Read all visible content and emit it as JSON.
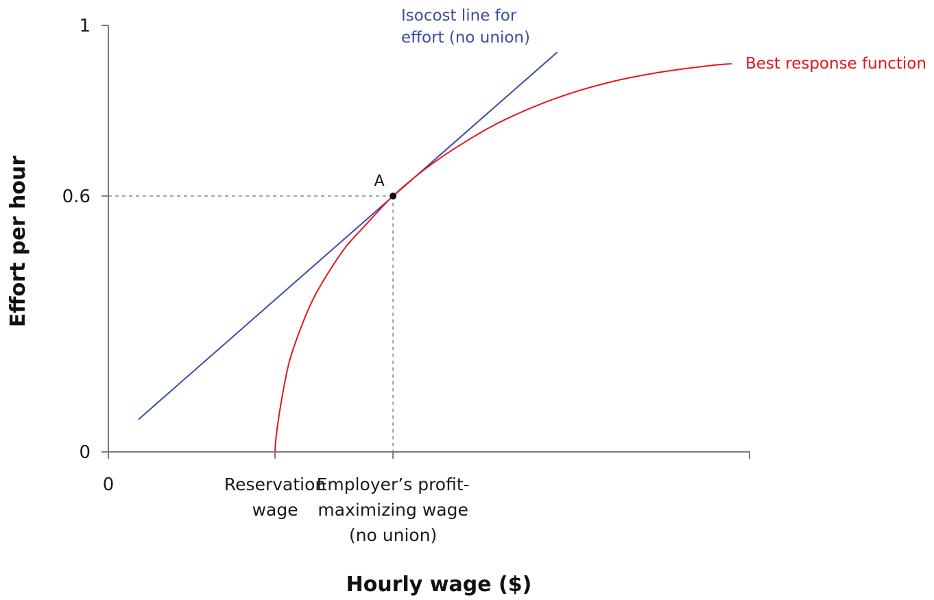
{
  "chart_data": {
    "type": "line",
    "title": "",
    "xlabel": "Hourly wage ($)",
    "ylabel": "Effort per hour",
    "xlim": [
      0,
      1
    ],
    "ylim": [
      0,
      1
    ],
    "y_ticks": [
      {
        "value": 0,
        "label": "0"
      },
      {
        "value": 0.6,
        "label": "0.6"
      },
      {
        "value": 1,
        "label": "1"
      }
    ],
    "x_ticks": [
      {
        "value": 0,
        "label": "0"
      }
    ],
    "x_category_labels": [
      {
        "value": 0.26,
        "lines": [
          "Reservation",
          "wage"
        ]
      },
      {
        "value": 0.444,
        "lines": [
          "Employer’s profit-",
          "maximizing wage",
          "(no union)"
        ]
      }
    ],
    "series": [
      {
        "name": "Isocost line for effort (no union)",
        "label_lines": [
          "Isocost line for",
          "effort (no union)"
        ],
        "color": "#3b4ba8",
        "x": [
          0.047,
          0.7
        ],
        "y": [
          0.076,
          0.937
        ]
      },
      {
        "name": "Best response function",
        "label_lines": [
          "Best response function"
        ],
        "color": "#e8141c",
        "x": [
          0.26,
          0.262,
          0.27,
          0.282,
          0.3,
          0.32,
          0.343,
          0.37,
          0.4,
          0.444,
          0.5,
          0.56,
          0.62,
          0.7,
          0.78,
          0.86,
          0.94,
          0.972
        ],
        "y": [
          0,
          0.04,
          0.12,
          0.21,
          0.29,
          0.36,
          0.42,
          0.48,
          0.53,
          0.6,
          0.67,
          0.73,
          0.78,
          0.83,
          0.866,
          0.89,
          0.906,
          0.91
        ]
      }
    ],
    "points": [
      {
        "label": "A",
        "x": 0.444,
        "y": 0.6,
        "color": "#111111"
      }
    ],
    "reference_lines": [
      {
        "x": 0.444,
        "y": 0.6,
        "style": "dashed",
        "color": "#8a8a8a"
      }
    ],
    "grid": false,
    "legend": "none"
  }
}
